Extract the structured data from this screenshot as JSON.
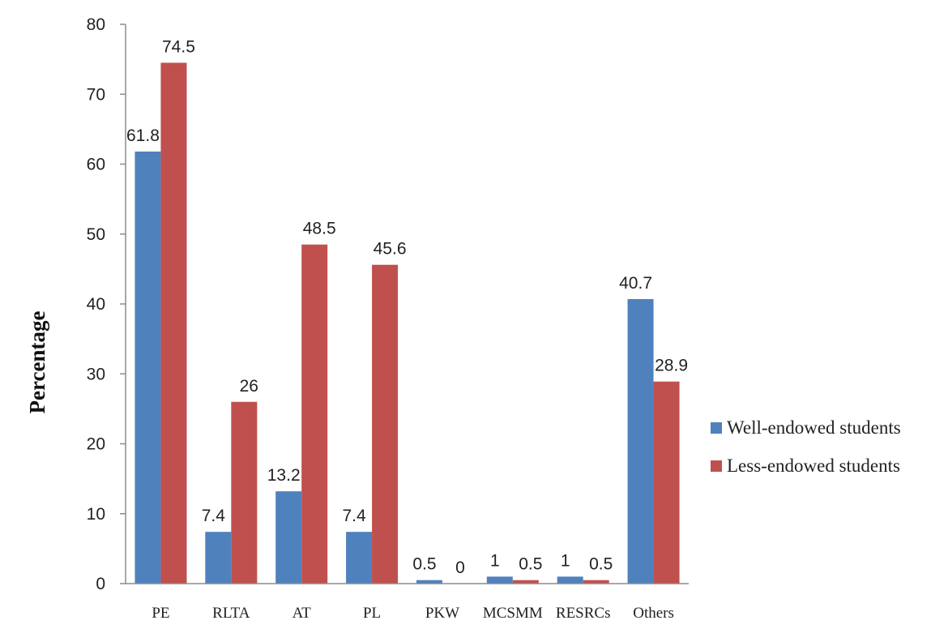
{
  "chart_data": {
    "type": "bar",
    "title": "",
    "xlabel": "",
    "ylabel": "Percentage",
    "ylim": [
      0,
      80
    ],
    "yticks": [
      0,
      10,
      20,
      30,
      40,
      50,
      60,
      70,
      80
    ],
    "grid": false,
    "legend_position": "right",
    "categories": [
      "PE",
      "RLTA",
      "AT",
      "PL",
      "PKW",
      "MCSMM",
      "RESRCs",
      "Others"
    ],
    "series": [
      {
        "name": "Well-endowed students",
        "color": "#4F81BD",
        "values": [
          61.8,
          7.4,
          13.2,
          7.4,
          0.5,
          1,
          1,
          40.7
        ],
        "labels": [
          "61.8",
          "7.4",
          "13.2",
          "7.4",
          "0.5",
          "1",
          "1",
          "40.7"
        ]
      },
      {
        "name": "Less-endowed students",
        "color": "#C0504D",
        "values": [
          74.5,
          26,
          48.5,
          45.6,
          0,
          0.5,
          0.5,
          28.9
        ],
        "labels": [
          "74.5",
          "26",
          "48.5",
          "45.6",
          "0",
          "0.5",
          "0.5",
          "28.9"
        ]
      }
    ]
  }
}
